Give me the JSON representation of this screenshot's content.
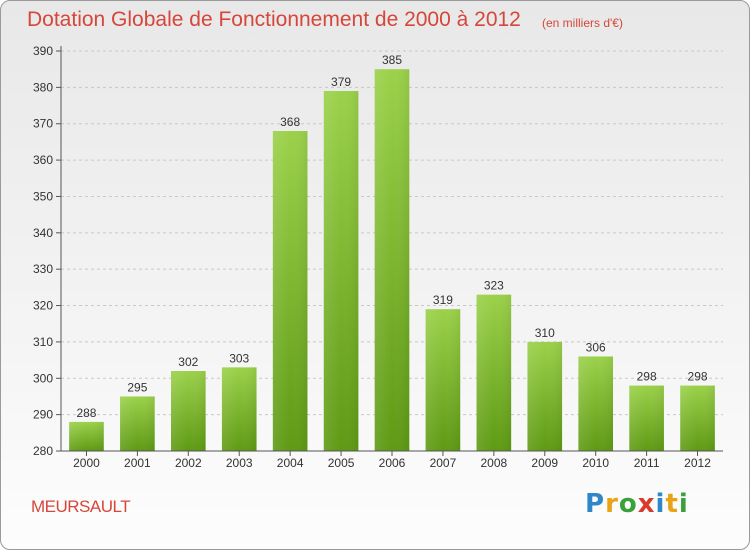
{
  "header": {
    "title": "Dotation Globale de Fonctionnement de 2000 à 2012",
    "subtitle": "(en milliers d'€)"
  },
  "footer": {
    "commune": "MEURSAULT",
    "logo_text": "Proxiti",
    "logo_letters": [
      {
        "ch": "P",
        "color": "#2f86c8"
      },
      {
        "ch": "r",
        "color": "#e8a317"
      },
      {
        "ch": "o",
        "color": "#3aa13a"
      },
      {
        "ch": "x",
        "color": "#d93a2a"
      },
      {
        "ch": "i",
        "color": "#2f86c8"
      },
      {
        "ch": "t",
        "color": "#e8a317"
      },
      {
        "ch": "i",
        "color": "#3aa13a"
      }
    ]
  },
  "colors": {
    "bar_top": "#9bd14a",
    "bar_bottom": "#5e9a14",
    "accent": "#d6463a",
    "grid": "#c8c8c8"
  },
  "chart_data": {
    "type": "bar",
    "categories": [
      "2000",
      "2001",
      "2002",
      "2003",
      "2004",
      "2005",
      "2006",
      "2007",
      "2008",
      "2009",
      "2010",
      "2011",
      "2012"
    ],
    "values": [
      288,
      295,
      302,
      303,
      368,
      379,
      385,
      319,
      323,
      310,
      306,
      298,
      298
    ],
    "ylim": [
      280,
      390
    ],
    "yticks": [
      280,
      290,
      300,
      310,
      320,
      330,
      340,
      350,
      360,
      370,
      380,
      390
    ],
    "grid": true,
    "data_labels": true
  }
}
